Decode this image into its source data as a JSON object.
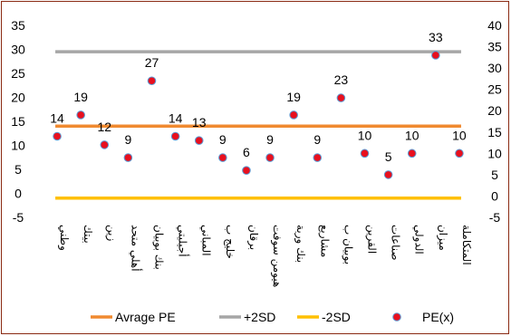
{
  "chart_data": {
    "type": "line",
    "categories": [
      "وطني",
      "بيتك",
      "زين",
      "أهلي متحد",
      "بنك بوبيان",
      "أجيليتي",
      "المباني",
      "خليج ب",
      "برقان",
      "هيومن سوفت",
      "بنك وربة",
      "مشاريع",
      "بوبيان ب",
      "القرين",
      "صناعات",
      "الدولي",
      "ميزان",
      "المتكاملة"
    ],
    "series": [
      {
        "name": "Avrage PE",
        "type": "line",
        "color": "#f08a30",
        "values": [
          14,
          14,
          14,
          14,
          14,
          14,
          14,
          14,
          14,
          14,
          14,
          14,
          14,
          14,
          14,
          14,
          14,
          14
        ]
      },
      {
        "name": "+2SD",
        "type": "line",
        "color": "#a6a6a6",
        "values": [
          29.5,
          29.5,
          29.5,
          29.5,
          29.5,
          29.5,
          29.5,
          29.5,
          29.5,
          29.5,
          29.5,
          29.5,
          29.5,
          29.5,
          29.5,
          29.5,
          29.5,
          29.5
        ]
      },
      {
        "name": "-2SD",
        "type": "line",
        "color": "#ffc000",
        "values": [
          -1,
          -1,
          -1,
          -1,
          -1,
          -1,
          -1,
          -1,
          -1,
          -1,
          -1,
          -1,
          -1,
          -1,
          -1,
          -1,
          -1,
          -1
        ]
      },
      {
        "name": "PE(x)",
        "type": "scatter",
        "axis": "right",
        "marker_color": "#e8101e",
        "marker_edge": "#5b9bd5",
        "values": [
          14,
          19,
          12,
          9,
          27,
          14,
          13,
          9,
          6,
          9,
          19,
          9,
          23,
          10,
          5,
          10,
          33,
          10
        ],
        "data_labels": [
          "14",
          "19",
          "12",
          "9",
          "27",
          "14",
          "13",
          "9",
          "6",
          "9",
          "19",
          "9",
          "23",
          "10",
          "5",
          "10",
          "33",
          "10"
        ]
      }
    ],
    "left_axis": {
      "ylim": [
        -5,
        35
      ],
      "ticks": [
        "-5",
        "0",
        "5",
        "10",
        "15",
        "20",
        "25",
        "30",
        "35"
      ]
    },
    "right_axis": {
      "ylim": [
        -5,
        40
      ],
      "ticks": [
        "-5",
        "0",
        "5",
        "10",
        "15",
        "20",
        "25",
        "30",
        "35",
        "40"
      ]
    },
    "grid": false,
    "legend": {
      "position": "bottom",
      "entries": [
        {
          "label": "Avrage PE",
          "color": "#f08a30",
          "kind": "line"
        },
        {
          "label": "+2SD",
          "color": "#a6a6a6",
          "kind": "line"
        },
        {
          "label": "-2SD",
          "color": "#ffc000",
          "kind": "line"
        },
        {
          "label": "PE(x)",
          "color": "#e8101e",
          "kind": "marker"
        }
      ]
    },
    "border_color": "#8a2a12"
  }
}
